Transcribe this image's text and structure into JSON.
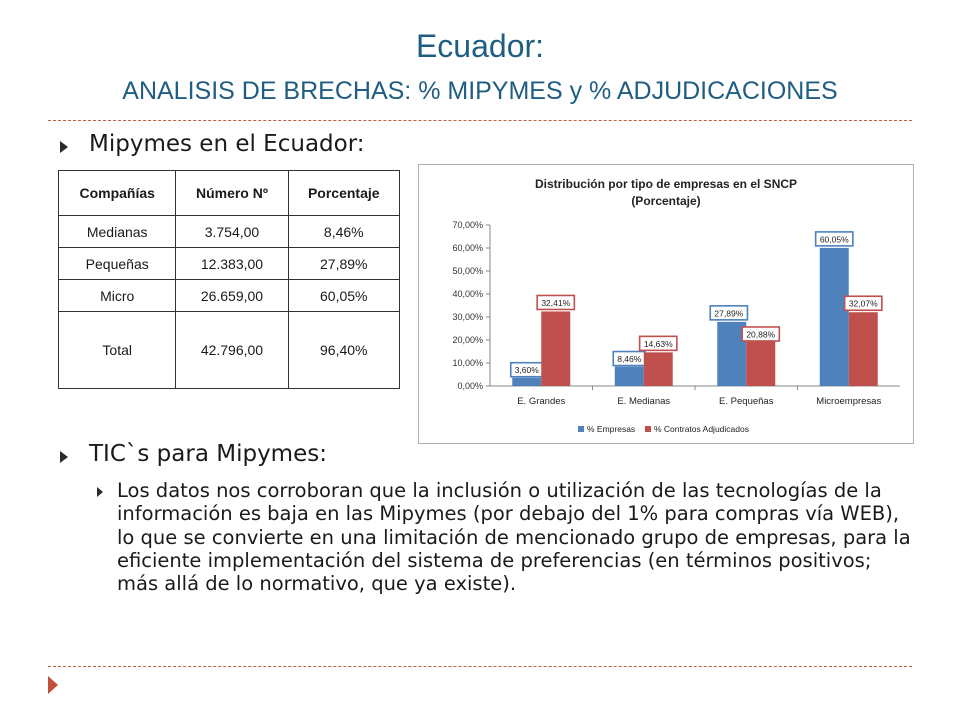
{
  "title": {
    "main": "Ecuador:",
    "sub": "ANALISIS DE BRECHAS: % MIPYMES y % ADJUDICACIONES"
  },
  "section1": {
    "heading": "Mipymes en el Ecuador:"
  },
  "table": {
    "headers": [
      "Compañías",
      "Número Nº",
      "Porcentaje"
    ],
    "rows": [
      [
        "Medianas",
        "3.754,00",
        "8,46%"
      ],
      [
        "Pequeñas",
        "12.383,00",
        "27,89%"
      ],
      [
        "Micro",
        "26.659,00",
        "60,05%"
      ],
      [
        "Total",
        "42.796,00",
        "96,40%"
      ]
    ]
  },
  "chart_data": {
    "type": "bar",
    "title": "Distribución por tipo de empresas en el SNCP",
    "subtitle": "(Porcentaje)",
    "categories": [
      "E. Grandes",
      "E. Medianas",
      "E. Pequeñas",
      "Microempresas"
    ],
    "series": [
      {
        "name": "% Empresas",
        "values": [
          3.6,
          8.46,
          27.89,
          60.05
        ],
        "labels": [
          "3,60%",
          "8,46%",
          "27,89%",
          "60,05%"
        ],
        "color": "#4f81bd"
      },
      {
        "name": "% Contratos Adjudicados",
        "values": [
          32.41,
          14.63,
          20.88,
          32.07
        ],
        "labels": [
          "32,41%",
          "14,63%",
          "20,88%",
          "32,07%"
        ],
        "color": "#c0504d"
      }
    ],
    "yticks": [
      "0,00%",
      "10,00%",
      "20,00%",
      "30,00%",
      "40,00%",
      "50,00%",
      "60,00%",
      "70,00%"
    ],
    "ylim": [
      0,
      70
    ],
    "legend": "bottom",
    "grid": false
  },
  "section2": {
    "heading": "TIC`s para Mipymes:",
    "body": "Los datos nos corroboran que la inclusión o utilización de las tecnologías de la información es baja en las Mipymes (por debajo del 1% para compras vía WEB), lo que se convierte en una limitación de mencionado grupo de empresas, para la eficiente implementación del sistema de preferencias (en términos positivos; más allá de lo normativo, que ya existe)."
  }
}
